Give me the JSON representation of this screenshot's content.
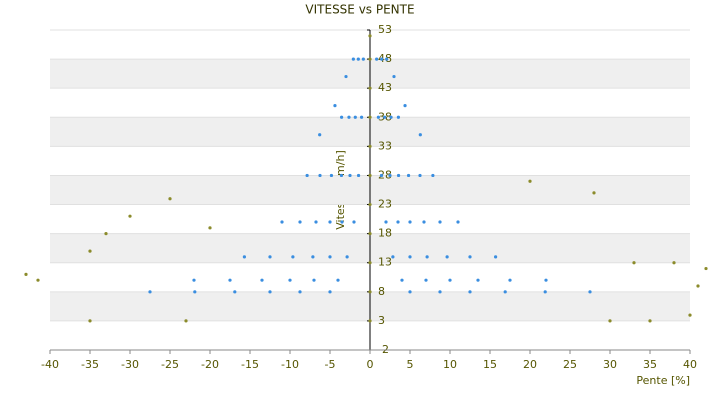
{
  "chart_data": {
    "type": "scatter",
    "title": "VITESSE vs PENTE",
    "xlabel": "Pente [%]",
    "ylabel": "Vitesse [km/h]",
    "xlim": [
      -40,
      40
    ],
    "ylim": [
      -2,
      53
    ],
    "xticks": [
      -40,
      -35,
      -30,
      -25,
      -20,
      -15,
      -10,
      -5,
      0,
      5,
      10,
      15,
      20,
      25,
      30,
      35,
      40
    ],
    "yticks": [
      -2,
      3,
      8,
      13,
      18,
      23,
      28,
      33,
      38,
      43,
      48,
      53
    ],
    "grid": true,
    "series": [
      {
        "color": "#3a8ee0",
        "x": [
          0.83,
          1.05,
          1.43,
          2,
          2.86,
          4,
          5,
          1.46,
          1.84,
          2.5,
          3.5,
          5,
          7,
          8.75,
          2.08,
          2.63,
          3.57,
          5,
          7.14,
          10,
          12.5,
          3,
          3.55,
          4.82,
          6.75,
          9.64,
          13.5,
          16.9,
          4.38,
          6.25,
          8.75,
          12.5,
          17.5,
          21.9,
          6.29,
          7.86,
          11,
          15.7,
          22,
          27.5,
          -0.83,
          -1.05,
          -1.43,
          -2,
          -2.86,
          -4,
          -5,
          -1.46,
          -1.84,
          -2.5,
          -3.5,
          -5,
          -7,
          -8.75,
          -2.08,
          -2.63,
          -3.57,
          -5,
          -7.14,
          -10,
          -12.5,
          -3,
          -3.55,
          -4.82,
          -6.75,
          -9.64,
          -13.5,
          -16.9,
          -4.38,
          -6.25,
          -8.75,
          -12.5,
          -17.5,
          -21.9,
          -6.29,
          -7.86,
          -11,
          -15.7,
          -22,
          -27.5
        ],
        "values": [
          48,
          38,
          28,
          20,
          14,
          10,
          8,
          48,
          38,
          28,
          20,
          14,
          10,
          8,
          48,
          38,
          28,
          20,
          14,
          10,
          8,
          45,
          38,
          28,
          20,
          14,
          10,
          8,
          40,
          28,
          20,
          14,
          10,
          8,
          35,
          28,
          20,
          14,
          10,
          8,
          48,
          38,
          28,
          20,
          14,
          10,
          8,
          48,
          38,
          28,
          20,
          14,
          10,
          8,
          48,
          38,
          28,
          20,
          14,
          10,
          8,
          45,
          38,
          28,
          20,
          14,
          10,
          8,
          40,
          28,
          20,
          14,
          10,
          8,
          35,
          28,
          20,
          14,
          10,
          8
        ]
      },
      {
        "color": "#8b8b2b",
        "x": [
          0,
          0,
          0,
          0,
          0,
          0,
          0,
          0,
          0,
          0,
          0,
          -43,
          -41.5,
          -35,
          -33,
          -30,
          -25,
          -20,
          -35,
          -23,
          30,
          35,
          40,
          42,
          41,
          28,
          20,
          38,
          33
        ],
        "values": [
          3,
          8,
          13,
          18,
          23,
          28,
          33,
          38,
          43,
          48,
          52,
          11,
          10,
          15,
          18,
          21,
          24,
          19,
          3,
          3,
          3,
          3,
          4,
          12,
          9,
          25,
          27,
          13,
          13
        ]
      }
    ]
  }
}
